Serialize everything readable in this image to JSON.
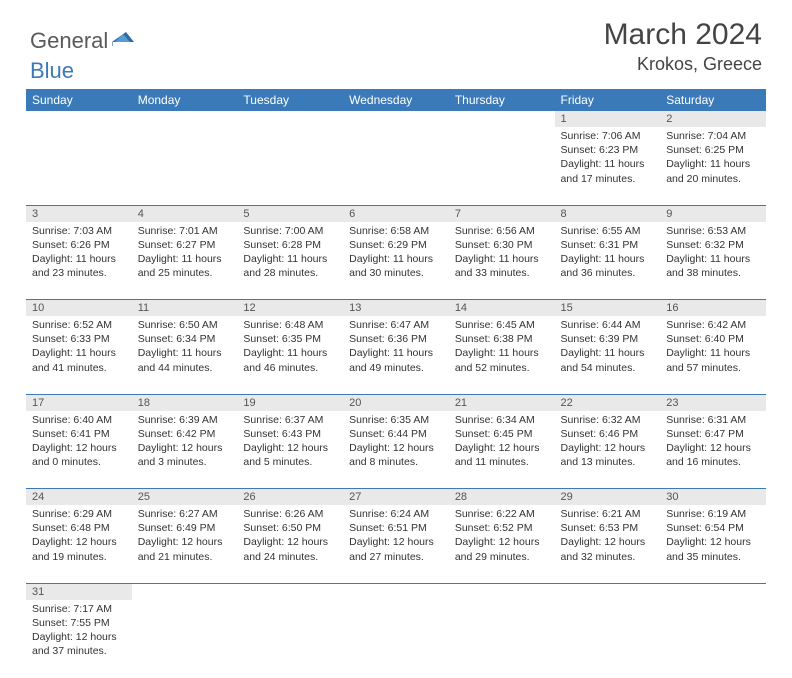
{
  "logo": {
    "part1": "General",
    "part2": "Blue"
  },
  "title": "March 2024",
  "location": "Krokos, Greece",
  "colors": {
    "header_bg": "#3a7ab8",
    "daynum_bg": "#e9e9e9",
    "row_border": "#3a7ab8",
    "logo_gray": "#5a5a5a",
    "logo_blue": "#3a7ab8"
  },
  "weekdays": [
    "Sunday",
    "Monday",
    "Tuesday",
    "Wednesday",
    "Thursday",
    "Friday",
    "Saturday"
  ],
  "weeks": [
    {
      "nums": [
        "",
        "",
        "",
        "",
        "",
        "1",
        "2"
      ],
      "cells": [
        null,
        null,
        null,
        null,
        null,
        {
          "sunrise": "7:06 AM",
          "sunset": "6:23 PM",
          "daylight": "11 hours and 17 minutes."
        },
        {
          "sunrise": "7:04 AM",
          "sunset": "6:25 PM",
          "daylight": "11 hours and 20 minutes."
        }
      ]
    },
    {
      "nums": [
        "3",
        "4",
        "5",
        "6",
        "7",
        "8",
        "9"
      ],
      "cells": [
        {
          "sunrise": "7:03 AM",
          "sunset": "6:26 PM",
          "daylight": "11 hours and 23 minutes."
        },
        {
          "sunrise": "7:01 AM",
          "sunset": "6:27 PM",
          "daylight": "11 hours and 25 minutes."
        },
        {
          "sunrise": "7:00 AM",
          "sunset": "6:28 PM",
          "daylight": "11 hours and 28 minutes."
        },
        {
          "sunrise": "6:58 AM",
          "sunset": "6:29 PM",
          "daylight": "11 hours and 30 minutes."
        },
        {
          "sunrise": "6:56 AM",
          "sunset": "6:30 PM",
          "daylight": "11 hours and 33 minutes."
        },
        {
          "sunrise": "6:55 AM",
          "sunset": "6:31 PM",
          "daylight": "11 hours and 36 minutes."
        },
        {
          "sunrise": "6:53 AM",
          "sunset": "6:32 PM",
          "daylight": "11 hours and 38 minutes."
        }
      ]
    },
    {
      "nums": [
        "10",
        "11",
        "12",
        "13",
        "14",
        "15",
        "16"
      ],
      "cells": [
        {
          "sunrise": "6:52 AM",
          "sunset": "6:33 PM",
          "daylight": "11 hours and 41 minutes."
        },
        {
          "sunrise": "6:50 AM",
          "sunset": "6:34 PM",
          "daylight": "11 hours and 44 minutes."
        },
        {
          "sunrise": "6:48 AM",
          "sunset": "6:35 PM",
          "daylight": "11 hours and 46 minutes."
        },
        {
          "sunrise": "6:47 AM",
          "sunset": "6:36 PM",
          "daylight": "11 hours and 49 minutes."
        },
        {
          "sunrise": "6:45 AM",
          "sunset": "6:38 PM",
          "daylight": "11 hours and 52 minutes."
        },
        {
          "sunrise": "6:44 AM",
          "sunset": "6:39 PM",
          "daylight": "11 hours and 54 minutes."
        },
        {
          "sunrise": "6:42 AM",
          "sunset": "6:40 PM",
          "daylight": "11 hours and 57 minutes."
        }
      ]
    },
    {
      "nums": [
        "17",
        "18",
        "19",
        "20",
        "21",
        "22",
        "23"
      ],
      "cells": [
        {
          "sunrise": "6:40 AM",
          "sunset": "6:41 PM",
          "daylight": "12 hours and 0 minutes."
        },
        {
          "sunrise": "6:39 AM",
          "sunset": "6:42 PM",
          "daylight": "12 hours and 3 minutes."
        },
        {
          "sunrise": "6:37 AM",
          "sunset": "6:43 PM",
          "daylight": "12 hours and 5 minutes."
        },
        {
          "sunrise": "6:35 AM",
          "sunset": "6:44 PM",
          "daylight": "12 hours and 8 minutes."
        },
        {
          "sunrise": "6:34 AM",
          "sunset": "6:45 PM",
          "daylight": "12 hours and 11 minutes."
        },
        {
          "sunrise": "6:32 AM",
          "sunset": "6:46 PM",
          "daylight": "12 hours and 13 minutes."
        },
        {
          "sunrise": "6:31 AM",
          "sunset": "6:47 PM",
          "daylight": "12 hours and 16 minutes."
        }
      ]
    },
    {
      "nums": [
        "24",
        "25",
        "26",
        "27",
        "28",
        "29",
        "30"
      ],
      "cells": [
        {
          "sunrise": "6:29 AM",
          "sunset": "6:48 PM",
          "daylight": "12 hours and 19 minutes."
        },
        {
          "sunrise": "6:27 AM",
          "sunset": "6:49 PM",
          "daylight": "12 hours and 21 minutes."
        },
        {
          "sunrise": "6:26 AM",
          "sunset": "6:50 PM",
          "daylight": "12 hours and 24 minutes."
        },
        {
          "sunrise": "6:24 AM",
          "sunset": "6:51 PM",
          "daylight": "12 hours and 27 minutes."
        },
        {
          "sunrise": "6:22 AM",
          "sunset": "6:52 PM",
          "daylight": "12 hours and 29 minutes."
        },
        {
          "sunrise": "6:21 AM",
          "sunset": "6:53 PM",
          "daylight": "12 hours and 32 minutes."
        },
        {
          "sunrise": "6:19 AM",
          "sunset": "6:54 PM",
          "daylight": "12 hours and 35 minutes."
        }
      ]
    },
    {
      "nums": [
        "31",
        "",
        "",
        "",
        "",
        "",
        ""
      ],
      "cells": [
        {
          "sunrise": "7:17 AM",
          "sunset": "7:55 PM",
          "daylight": "12 hours and 37 minutes."
        },
        null,
        null,
        null,
        null,
        null,
        null
      ]
    }
  ],
  "labels": {
    "sunrise": "Sunrise:",
    "sunset": "Sunset:",
    "daylight": "Daylight:"
  }
}
